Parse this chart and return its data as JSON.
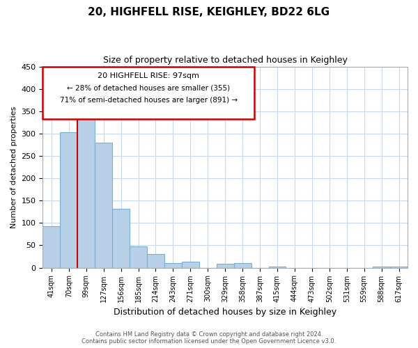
{
  "title": "20, HIGHFELL RISE, KEIGHLEY, BD22 6LG",
  "subtitle": "Size of property relative to detached houses in Keighley",
  "xlabel": "Distribution of detached houses by size in Keighley",
  "ylabel": "Number of detached properties",
  "bar_labels": [
    "41sqm",
    "70sqm",
    "99sqm",
    "127sqm",
    "156sqm",
    "185sqm",
    "214sqm",
    "243sqm",
    "271sqm",
    "300sqm",
    "329sqm",
    "358sqm",
    "387sqm",
    "415sqm",
    "444sqm",
    "473sqm",
    "502sqm",
    "531sqm",
    "559sqm",
    "588sqm",
    "617sqm"
  ],
  "bar_values": [
    93,
    303,
    341,
    279,
    131,
    47,
    31,
    10,
    14,
    0,
    8,
    10,
    0,
    2,
    0,
    0,
    0,
    0,
    0,
    3,
    2
  ],
  "bar_color": "#b8d0e8",
  "bar_edge_color": "#7aaed0",
  "vline_x_index": 1,
  "vline_color": "#cc0000",
  "ylim": [
    0,
    450
  ],
  "yticks": [
    0,
    50,
    100,
    150,
    200,
    250,
    300,
    350,
    400,
    450
  ],
  "annotation_title": "20 HIGHFELL RISE: 97sqm",
  "annotation_line1": "← 28% of detached houses are smaller (355)",
  "annotation_line2": "71% of semi-detached houses are larger (891) →",
  "footer_line1": "Contains HM Land Registry data © Crown copyright and database right 2024.",
  "footer_line2": "Contains public sector information licensed under the Open Government Licence v3.0.",
  "background_color": "#ffffff",
  "grid_color": "#c8d8e8"
}
